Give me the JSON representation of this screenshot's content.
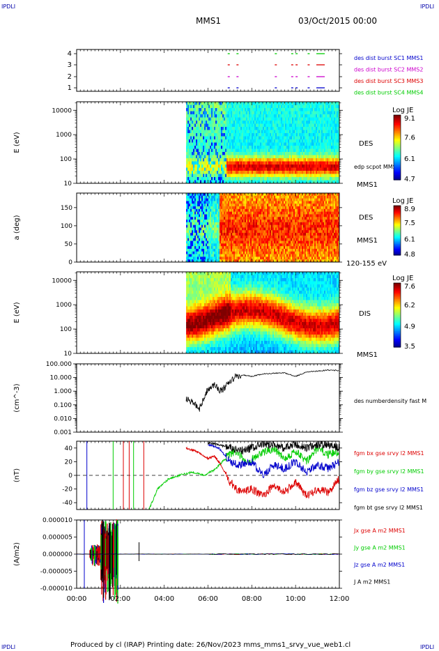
{
  "header": {
    "corner_tl": "IPDLI",
    "corner_tr": "IPDLI",
    "corner_bl": "IPDLI",
    "corner_br": "IPDLI",
    "spacecraft": "MMS1",
    "date": "03/Oct/2015 00:00"
  },
  "footer": {
    "text": "Produced by cl (IRAP)   Printing date: 26/Nov/2023   mms_mms1_srvy_vue_web1.cl"
  },
  "colors": {
    "mms1": "#0000cc",
    "mms2": "#cc00cc",
    "mms3": "#dd0000",
    "mms4": "#00cc00",
    "black": "#000000"
  },
  "chart_data": [
    {
      "type": "scatter",
      "panel": "burst-availability",
      "yticks": [
        "1",
        "2",
        "3",
        "4"
      ],
      "legend": [
        {
          "label": "des dist burst SC1 MMS1",
          "color": "#0000cc"
        },
        {
          "label": "des dist burst SC2 MMS2",
          "color": "#cc00cc"
        },
        {
          "label": "des dist burst SC3 MMS3",
          "color": "#dd0000"
        },
        {
          "label": "des dist burst SC4 MMS4",
          "color": "#00cc00"
        }
      ],
      "intervals_hours": [
        6.9,
        7.3,
        9.05,
        9.8,
        10.0,
        10.55,
        10.95
      ]
    },
    {
      "type": "heatmap",
      "panel": "des-energy-spectrogram",
      "ylabel": "E (eV)",
      "yscale": "log",
      "ylim": [
        10,
        20000
      ],
      "yticks": [
        "10000",
        "1000",
        "100",
        "10"
      ],
      "side_labels": [
        "DES",
        "edp scpot MMS1",
        "MMS1"
      ],
      "colorbar": {
        "title": "Log JE",
        "ticks": [
          "9.1",
          "7.6",
          "6.1",
          "4.7"
        ],
        "min": 4.7,
        "max": 9.1
      },
      "data_start_hour": 5.0
    },
    {
      "type": "heatmap",
      "panel": "des-pitch-angle",
      "ylabel": "a (deg)",
      "ylim": [
        0,
        180
      ],
      "yticks": [
        "150",
        "100",
        "50",
        "0"
      ],
      "side_labels": [
        "DES",
        "MMS1",
        "120-155 eV"
      ],
      "colorbar": {
        "title": "Log JE",
        "ticks": [
          "8.9",
          "7.5",
          "6.1",
          "4.8"
        ],
        "min": 4.8,
        "max": 8.9
      },
      "data_start_hour": 5.0
    },
    {
      "type": "heatmap",
      "panel": "dis-energy-spectrogram",
      "ylabel": "E (eV)",
      "yscale": "log",
      "ylim": [
        10,
        20000
      ],
      "yticks": [
        "10000",
        "1000",
        "100",
        "10"
      ],
      "side_labels": [
        "DIS",
        "MMS1"
      ],
      "colorbar": {
        "title": "Log JE",
        "ticks": [
          "7.6",
          "6.2",
          "4.9",
          "3.5"
        ],
        "min": 3.5,
        "max": 7.6
      },
      "data_start_hour": 5.0
    },
    {
      "type": "line",
      "panel": "electron-density",
      "ylabel": "(cm^-3)",
      "yscale": "log",
      "ylim": [
        0.001,
        100
      ],
      "yticks": [
        "100.000",
        "10.000",
        "1.000",
        "0.100",
        "0.010",
        "0.001"
      ],
      "series": [
        {
          "name": "des numberdensity fast M",
          "x": [
            5.0,
            5.3,
            5.6,
            5.8,
            6.0,
            6.3,
            6.6,
            6.9,
            7.2,
            7.6,
            8.0,
            8.5,
            9.0,
            9.5,
            10.0,
            10.5,
            11.0,
            11.5,
            12.0
          ],
          "y": [
            0.3,
            0.15,
            0.05,
            0.3,
            1.5,
            3.0,
            1.0,
            3.0,
            10,
            15,
            12,
            18,
            20,
            22,
            12,
            25,
            30,
            35,
            32
          ]
        }
      ]
    },
    {
      "type": "line",
      "panel": "magnetic-field",
      "ylabel": "(nT)",
      "ylim": [
        -50,
        50
      ],
      "yticks": [
        "40",
        "20",
        "0",
        "-20",
        "-40"
      ],
      "series": [
        {
          "name": "fgm bx gse srvy l2 MMS1",
          "color": "#dd0000",
          "x": [
            5.0,
            5.5,
            6.0,
            6.3,
            6.6,
            7.0,
            7.5,
            8.0,
            8.5,
            9.0,
            9.5,
            10.0,
            10.5,
            11.0,
            11.5,
            12.0
          ],
          "y": [
            40,
            35,
            25,
            28,
            15,
            -10,
            -25,
            -20,
            -30,
            -15,
            -25,
            -10,
            -30,
            -20,
            -25,
            -5
          ]
        },
        {
          "name": "fgm by gse srvy l2 MMS1",
          "color": "#00cc00",
          "x": [
            3.3,
            3.7,
            4.2,
            4.7,
            5.3,
            5.8,
            6.3,
            6.8,
            7.2,
            7.8,
            8.3,
            9.0,
            9.5,
            10.0,
            10.5,
            11.0,
            11.5,
            12.0
          ],
          "y": [
            -50,
            -20,
            -5,
            0,
            5,
            0,
            8,
            25,
            35,
            20,
            30,
            40,
            25,
            35,
            20,
            40,
            30,
            35
          ]
        },
        {
          "name": "fgm bz gse srvy l2 MMS1",
          "color": "#0000cc",
          "x": [
            6.0,
            6.5,
            7.0,
            7.5,
            8.0,
            8.5,
            9.0,
            9.5,
            10.0,
            10.5,
            11.0,
            11.5,
            12.0
          ],
          "y": [
            45,
            40,
            20,
            15,
            20,
            0,
            15,
            10,
            20,
            5,
            15,
            10,
            20
          ]
        },
        {
          "name": "fgm bt gse srvy l2 MMS1",
          "color": "#000000",
          "x": [
            6.0,
            6.5,
            7.0,
            7.5,
            8.0,
            8.5,
            9.0,
            9.5,
            10.0,
            10.5,
            11.0,
            11.5,
            12.0
          ],
          "y": [
            48,
            45,
            40,
            35,
            40,
            45,
            45,
            40,
            45,
            40,
            45,
            45,
            40
          ]
        }
      ]
    },
    {
      "type": "line",
      "panel": "current-density",
      "ylabel": "(A/m2)",
      "ylim": [
        -0.0001,
        0.0001
      ],
      "yticks": [
        "0.000010",
        "0.000005",
        "0.000000",
        "-0.000005",
        "-0.000010"
      ],
      "series": [
        {
          "name": "Jx gse A m2 MMS1",
          "color": "#dd0000"
        },
        {
          "name": "Jy gse A m2 MMS1",
          "color": "#00cc00"
        },
        {
          "name": "Jz gse A m2 MMS1",
          "color": "#0000cc"
        },
        {
          "name": "J A m2 MMS1",
          "color": "#000000"
        }
      ]
    }
  ],
  "xaxis": {
    "ticks": [
      "00:00",
      "02:00",
      "04:00",
      "06:00",
      "08:00",
      "10:00",
      "12:00"
    ]
  }
}
